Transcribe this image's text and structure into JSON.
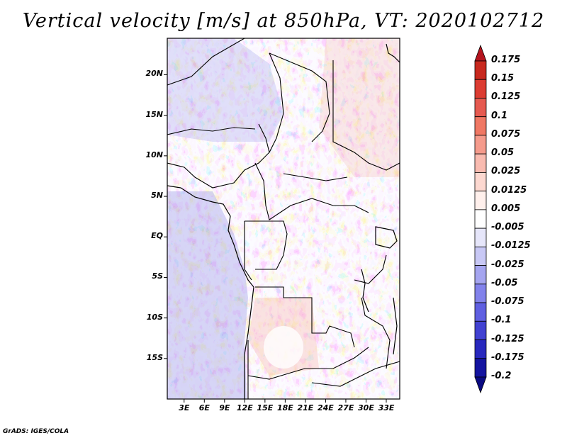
{
  "title": "Vertical velocity [m/s] at 850hPa, VT: 2020102712",
  "footer": "GrADS: IGES/COLA",
  "map": {
    "lat_labels": [
      "20N",
      "15N",
      "10N",
      "5N",
      "EQ",
      "5S",
      "10S",
      "15S"
    ],
    "lat_values": [
      20,
      15,
      10,
      5,
      0,
      -5,
      -10,
      -15
    ],
    "lon_labels": [
      "3E",
      "6E",
      "9E",
      "12E",
      "15E",
      "18E",
      "21E",
      "24E",
      "27E",
      "30E",
      "33E"
    ],
    "lon_values": [
      3,
      6,
      9,
      12,
      15,
      18,
      21,
      24,
      27,
      30,
      33
    ],
    "lat_range": [
      -20,
      24.5
    ],
    "lon_range": [
      0.5,
      35
    ]
  },
  "colorbar": {
    "labels": [
      "0.175",
      "0.15",
      "0.125",
      "0.1",
      "0.075",
      "0.05",
      "0.025",
      "0.0125",
      "0.005",
      "-0.005",
      "-0.0125",
      "-0.025",
      "-0.05",
      "-0.075",
      "-0.1",
      "-0.125",
      "-0.175",
      "-0.2"
    ],
    "colors": [
      "#b4141e",
      "#c8281e",
      "#dc3c32",
      "#e65a50",
      "#f07864",
      "#f59b8c",
      "#f9bbb0",
      "#fcd8d0",
      "#fff0ec",
      "#ffffff",
      "#e6e6fa",
      "#c8c8f5",
      "#a5a5f0",
      "#8282eb",
      "#5f5fe1",
      "#4141d2",
      "#2828be",
      "#1414a0",
      "#0a0a82"
    ]
  }
}
